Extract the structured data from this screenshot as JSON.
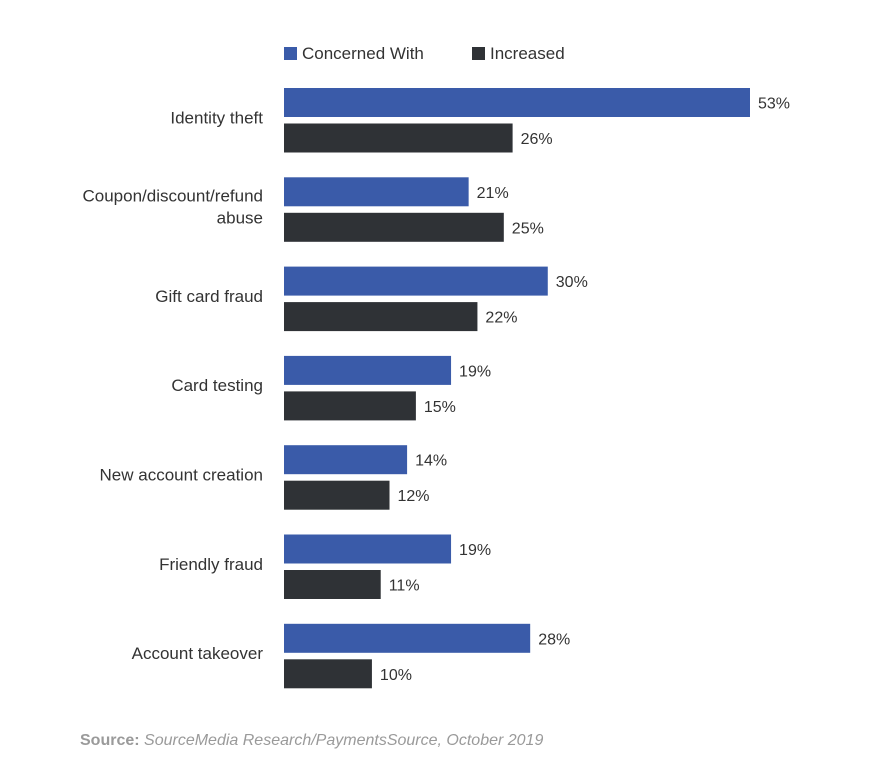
{
  "chart_data": {
    "type": "bar",
    "orientation": "horizontal",
    "categories": [
      "Identity theft",
      "Coupon/discount/refund abuse",
      "Gift card fraud",
      "Card testing",
      "New account creation",
      "Friendly fraud",
      "Account takeover"
    ],
    "series": [
      {
        "name": "Concerned With",
        "color": "#3a5ba9",
        "values": [
          53,
          21,
          30,
          19,
          14,
          19,
          28
        ],
        "labels": [
          "53%",
          "21%",
          "30%",
          "19%",
          "14%",
          "19%",
          "28%"
        ]
      },
      {
        "name": "Increased",
        "color": "#2f3236",
        "values": [
          26,
          25,
          22,
          15,
          12,
          11,
          10
        ],
        "labels": [
          "26%",
          "25%",
          "22%",
          "15%",
          "12%",
          "11%",
          "10%"
        ]
      }
    ],
    "xlim": [
      0,
      53
    ],
    "grid": false,
    "legend_position": "top"
  },
  "source": {
    "label": "Source:",
    "text": "SourceMedia Research/PaymentsSource, October 2019"
  }
}
